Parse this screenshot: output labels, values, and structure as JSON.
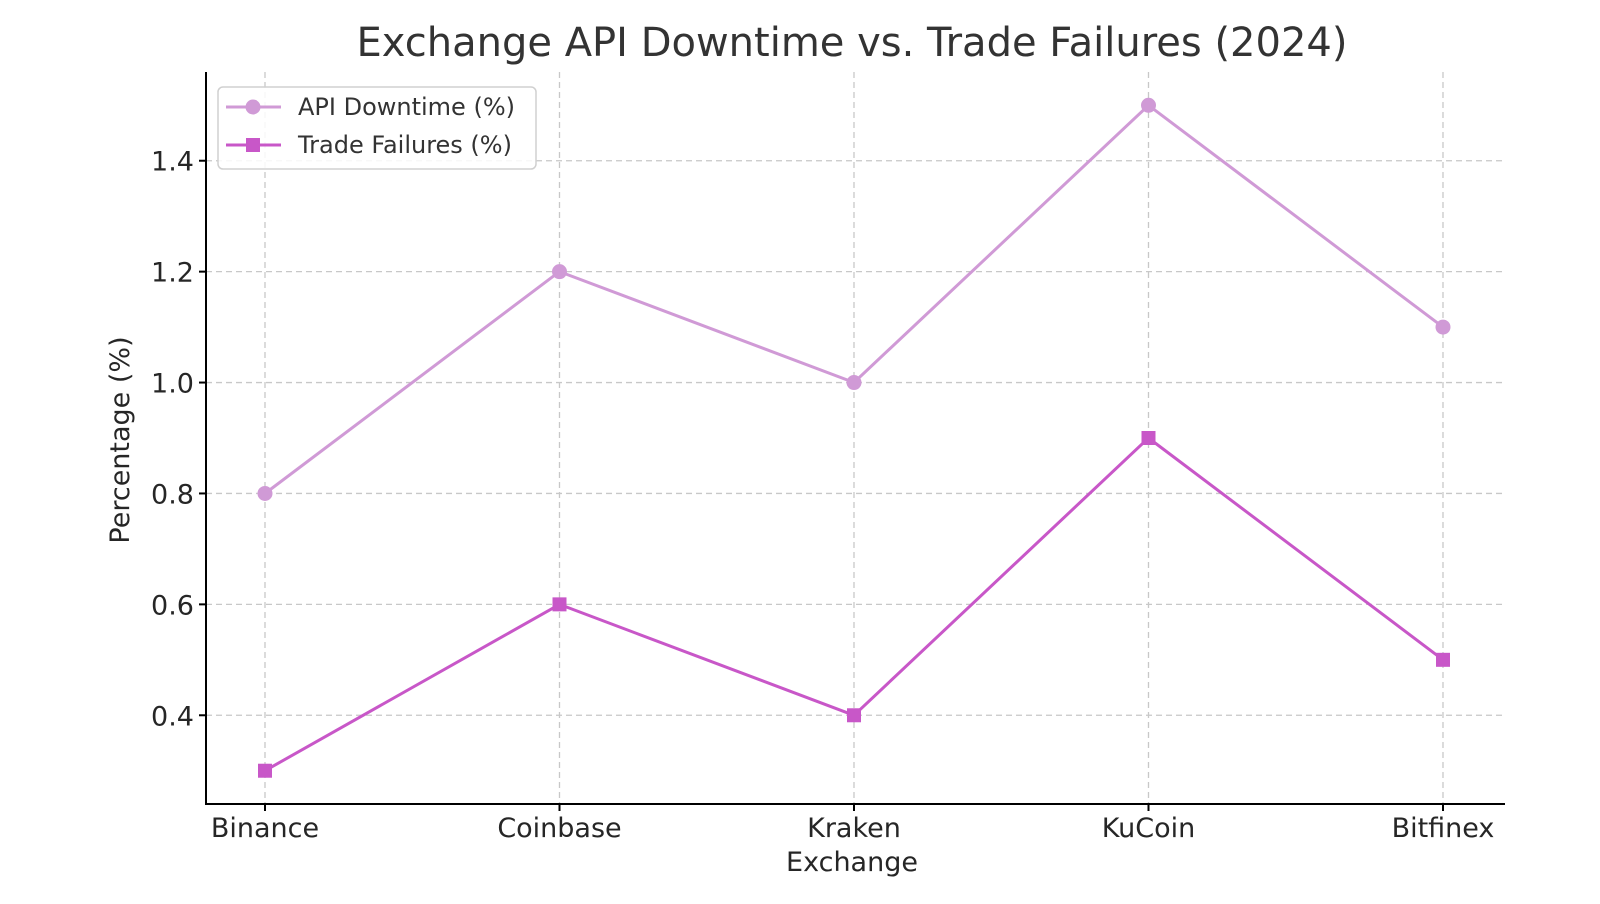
{
  "chart_data": {
    "type": "line",
    "title": "Exchange API Downtime vs. Trade Failures (2024)",
    "xlabel": "Exchange",
    "ylabel": "Percentage (%)",
    "categories": [
      "Binance",
      "Coinbase",
      "Kraken",
      "KuCoin",
      "Bitfinex"
    ],
    "yticks": [
      "0.4",
      "0.6",
      "0.8",
      "1.0",
      "1.2",
      "1.4"
    ],
    "ylim": [
      0.24,
      1.56
    ],
    "grid": true,
    "legend_position": "top-left",
    "series": [
      {
        "name": "API Downtime (%)",
        "values": [
          0.8,
          1.2,
          1.0,
          1.5,
          1.1
        ],
        "color": "#d09ad6",
        "marker": "circle"
      },
      {
        "name": "Trade Failures (%)",
        "values": [
          0.3,
          0.6,
          0.4,
          0.9,
          0.5
        ],
        "color": "#c857c8",
        "marker": "square"
      }
    ]
  }
}
